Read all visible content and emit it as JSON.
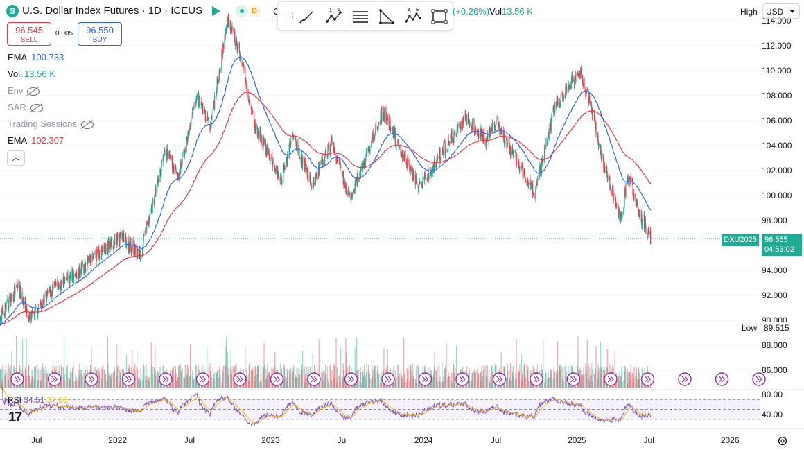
{
  "header": {
    "symbol_badge": "S",
    "title": "U.S. Dollar Index Futures · 1D · ICEUS",
    "delayed_badge": "D",
    "ohlc_prefix": "C",
    "change": "(+0.26%)",
    "volume_label": "Vol",
    "volume_value": "13.56 K"
  },
  "trade": {
    "sell_price": "96.545",
    "sell_label": "SELL",
    "spread": "0.005",
    "buy_price": "96.550",
    "buy_label": "BUY"
  },
  "indicators": [
    {
      "name": "EMA",
      "value": "100.733",
      "color": "#2962ff"
    },
    {
      "name": "Vol",
      "value": "13.56 K",
      "color": "#22ab94"
    },
    {
      "name": "Env",
      "value": "",
      "hidden": true
    },
    {
      "name": "SAR",
      "value": "",
      "hidden": true
    },
    {
      "name": "Trading Sessions",
      "value": "",
      "hidden": true
    },
    {
      "name": "EMA",
      "value": "102.307",
      "color": "#f23645"
    }
  ],
  "toolbar": {
    "tools": [
      "brush-icon",
      "wave-points-icon",
      "fib-lines-icon",
      "triangle-pattern-icon",
      "abcde-pattern-icon",
      "rectangle-icon"
    ],
    "wave_labels": [
      "1",
      "5"
    ],
    "abcde_labels": [
      "A",
      "E"
    ]
  },
  "price_axis": {
    "labels": [
      "114.000",
      "112.000",
      "110.000",
      "108.000",
      "106.000",
      "104.000",
      "102.000",
      "100.000",
      "98.000",
      "94.000",
      "92.000",
      "90.000",
      "88.000",
      "86.000"
    ],
    "high_label": "High",
    "currency": "USD",
    "symbol_tag": "DXU2025",
    "last_price": "96.555",
    "countdown": "04:53:02",
    "low_label": "Low",
    "low_value": "89.515"
  },
  "rsi_pane": {
    "label": "RSI",
    "value1": "34.51",
    "value2": "37.65",
    "axis_labels": [
      "80.00",
      "40.00"
    ]
  },
  "time_axis": {
    "labels": [
      "Jul",
      "2022",
      "Jul",
      "2023",
      "Jul",
      "2024",
      "Jul",
      "2025",
      "Jul",
      "2026"
    ]
  },
  "colors": {
    "up": "#22ab94",
    "down": "#f23645",
    "ema_fast": "#2962ff",
    "ema_slow": "#f23645",
    "rsi": "#7e57c2",
    "rsi_ma": "#f7b500",
    "event_icon": "#9c27b0"
  },
  "chart_data": {
    "type": "candlestick",
    "x_range": [
      "2021-04",
      "2026-03"
    ],
    "y_range": [
      85.0,
      114.5
    ],
    "rsi_range": [
      20,
      90
    ],
    "anchors": [
      [
        "2021-04-01",
        90.2
      ],
      [
        "2021-05-15",
        92.8
      ],
      [
        "2021-06-10",
        90.0
      ],
      [
        "2021-08-01",
        92.4
      ],
      [
        "2021-10-01",
        93.8
      ],
      [
        "2021-12-01",
        95.6
      ],
      [
        "2022-01-15",
        96.7
      ],
      [
        "2022-03-01",
        95.2
      ],
      [
        "2022-05-01",
        103.5
      ],
      [
        "2022-06-01",
        101.5
      ],
      [
        "2022-07-15",
        108.0
      ],
      [
        "2022-08-15",
        105.5
      ],
      [
        "2022-09-27",
        114.2
      ],
      [
        "2022-11-01",
        110.5
      ],
      [
        "2022-11-30",
        105.5
      ],
      [
        "2023-01-31",
        101.3
      ],
      [
        "2023-03-01",
        104.8
      ],
      [
        "2023-04-15",
        100.8
      ],
      [
        "2023-06-01",
        104.2
      ],
      [
        "2023-07-15",
        99.6
      ],
      [
        "2023-10-01",
        106.8
      ],
      [
        "2023-12-28",
        100.6
      ],
      [
        "2024-04-15",
        106.2
      ],
      [
        "2024-06-01",
        104.5
      ],
      [
        "2024-06-28",
        105.9
      ],
      [
        "2024-09-27",
        100.1
      ],
      [
        "2024-11-15",
        107.2
      ],
      [
        "2025-01-13",
        110.0
      ],
      [
        "2025-02-15",
        106.5
      ],
      [
        "2025-03-01",
        103.8
      ],
      [
        "2025-04-21",
        98.1
      ],
      [
        "2025-05-10",
        101.8
      ],
      [
        "2025-06-01",
        98.8
      ],
      [
        "2025-07-01",
        96.55
      ]
    ],
    "ema_fast_last": 100.733,
    "ema_slow_last": 102.307,
    "last": 96.555,
    "low": 89.515
  }
}
